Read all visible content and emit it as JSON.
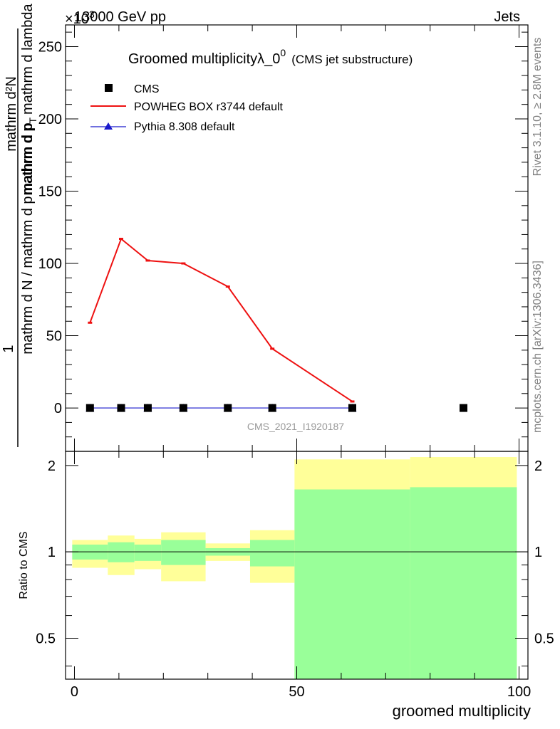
{
  "header": {
    "left_label": "13000 GeV pp",
    "right_label": "Jets",
    "exponent_label": "×10",
    "exponent_power": "3"
  },
  "watermark": {
    "rivet": "Rivet 3.1.10, ≥ 2.8M events",
    "mcplots": "mcplots.cern.ch [arXiv:1306.3436]",
    "analysis_id": "CMS_2021_I1920187"
  },
  "colors": {
    "powheg": "#ee1111",
    "pythia": "#1a1acc",
    "cms": "#000000",
    "band_inner": "#99ff99",
    "band_outer": "#ffff99"
  },
  "chart_data": [
    {
      "type": "line",
      "title": "Groomed multiplicityλ_0",
      "title_sup": "0",
      "title_suffix": "(CMS jet substructure)",
      "ylabel_numerator": "mathrm d²N",
      "ylabel_numerator_sub": "T",
      "ylabel_numerator_text": "mathrm d p",
      "ylabel_numerator_tail": "mathrm d lambda",
      "ylabel_denominator": "mathrm d N / mathrm d p",
      "ylabel_denominator_tail": "mathrm d p",
      "ylabel_one": "1",
      "ylim": [
        -30,
        265
      ],
      "yticks": [
        0,
        50,
        100,
        150,
        200,
        250
      ],
      "ytick_labels": [
        "0",
        "50",
        "100",
        "150",
        "200",
        "250"
      ],
      "xlim": [
        -2,
        102
      ],
      "legend_placement": "top-left",
      "legend": [
        "CMS",
        "POWHEG BOX r3744 default",
        "Pythia 8.308 default"
      ],
      "series": [
        {
          "name": "CMS",
          "marker": "square",
          "x": [
            3.5,
            10.5,
            16.5,
            24.5,
            34.5,
            44.5,
            62.5,
            87.5
          ],
          "y": [
            0,
            0,
            0,
            0,
            0,
            0,
            0,
            0
          ]
        },
        {
          "name": "POWHEG BOX r3744 default",
          "marker": "none",
          "x": [
            3.5,
            10.5,
            16.5,
            24.5,
            34.5,
            44.5,
            62.5
          ],
          "y": [
            59,
            117,
            102,
            100,
            84,
            41,
            4.5
          ]
        },
        {
          "name": "Pythia 8.308 default",
          "marker": "triangle",
          "x": [
            3.5,
            10.5,
            16.5,
            24.5,
            34.5,
            44.5,
            62.5
          ],
          "y": [
            0,
            0,
            0,
            0,
            0,
            0,
            0
          ]
        }
      ]
    },
    {
      "type": "area",
      "xlabel": "groomed multiplicity",
      "ylabel": "Ratio to CMS",
      "ylim": [
        0.36,
        2.24
      ],
      "yticks": [
        0.5,
        1,
        2
      ],
      "ytick_labels": [
        "0.5",
        "1",
        "2"
      ],
      "xlim": [
        -2,
        102
      ],
      "xticks": [
        0,
        50,
        100
      ],
      "xtick_labels": [
        "0",
        "50",
        "100"
      ],
      "reference_line": 1,
      "bins": [
        {
          "x0": -0.5,
          "x1": 7.5,
          "outer": [
            0.88,
            1.1
          ],
          "inner": [
            0.94,
            1.06
          ]
        },
        {
          "x0": 7.5,
          "x1": 13.5,
          "outer": [
            0.83,
            1.14
          ],
          "inner": [
            0.92,
            1.08
          ]
        },
        {
          "x0": 13.5,
          "x1": 19.5,
          "outer": [
            0.87,
            1.11
          ],
          "inner": [
            0.93,
            1.06
          ]
        },
        {
          "x0": 19.5,
          "x1": 29.5,
          "outer": [
            0.79,
            1.17
          ],
          "inner": [
            0.9,
            1.1
          ]
        },
        {
          "x0": 29.5,
          "x1": 39.5,
          "outer": [
            0.93,
            1.07
          ],
          "inner": [
            0.97,
            1.03
          ]
        },
        {
          "x0": 39.5,
          "x1": 49.5,
          "outer": [
            0.78,
            1.19
          ],
          "inner": [
            0.89,
            1.1
          ]
        },
        {
          "x0": 49.5,
          "x1": 75.5,
          "outer": [
            0.37,
            2.1
          ],
          "inner": [
            0.36,
            1.65
          ]
        },
        {
          "x0": 75.5,
          "x1": 99.5,
          "outer": [
            0.36,
            2.14
          ],
          "inner": [
            0.36,
            1.68
          ]
        }
      ]
    }
  ]
}
